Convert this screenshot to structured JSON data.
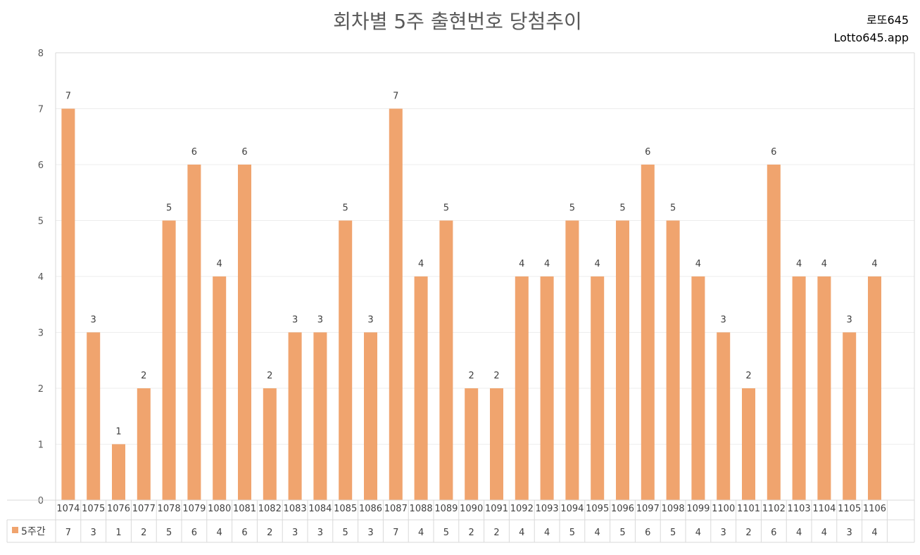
{
  "chart_data": {
    "type": "bar",
    "title": "회차별 5주 출현번호 당첨추이",
    "brand_line1": "로또645",
    "brand_line2": "Lotto645.app",
    "categories": [
      "1074",
      "1075",
      "1076",
      "1077",
      "1078",
      "1079",
      "1080",
      "1081",
      "1082",
      "1083",
      "1084",
      "1085",
      "1086",
      "1087",
      "1088",
      "1089",
      "1090",
      "1091",
      "1092",
      "1093",
      "1094",
      "1095",
      "1096",
      "1097",
      "1098",
      "1099",
      "1100",
      "1101",
      "1102",
      "1103",
      "1104",
      "1105",
      "1106"
    ],
    "series": [
      {
        "name": "5주간",
        "color": "#F0A46E",
        "values": [
          7,
          3,
          1,
          2,
          5,
          6,
          4,
          6,
          2,
          3,
          3,
          5,
          3,
          7,
          4,
          5,
          2,
          2,
          4,
          4,
          5,
          4,
          5,
          6,
          5,
          4,
          3,
          2,
          6,
          4,
          4,
          3,
          4
        ]
      }
    ],
    "ylim": [
      0,
      8
    ],
    "yticks": [
      "0",
      "1",
      "2",
      "3",
      "4",
      "5",
      "6",
      "7",
      "8"
    ],
    "grid": true,
    "data_table": true,
    "xlabel": "",
    "ylabel": ""
  }
}
